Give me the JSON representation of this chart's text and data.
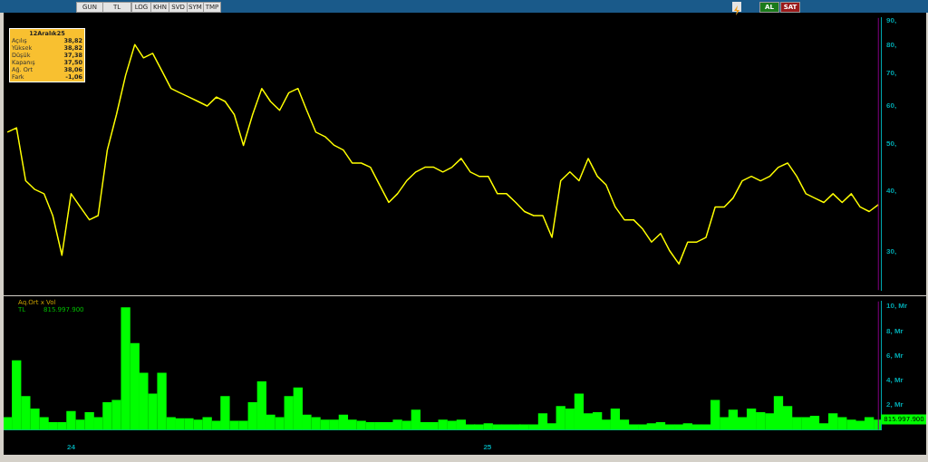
{
  "chart_data": [
    {
      "type": "line",
      "x": [
        2023.847,
        2023.869,
        2023.891,
        2023.913,
        2023.935,
        2023.956,
        2023.978,
        2024.0,
        2024.022,
        2024.044,
        2024.065,
        2024.087,
        2024.109,
        2024.131,
        2024.153,
        2024.174,
        2024.196,
        2024.218,
        2024.24,
        2024.261,
        2024.283,
        2024.305,
        2024.327,
        2024.349,
        2024.37,
        2024.392,
        2024.414,
        2024.436,
        2024.458,
        2024.479,
        2024.501,
        2024.523,
        2024.545,
        2024.566,
        2024.588,
        2024.61,
        2024.632,
        2024.654,
        2024.675,
        2024.697,
        2024.719,
        2024.741,
        2024.763,
        2024.784,
        2024.806,
        2024.828,
        2024.85,
        2024.871,
        2024.893,
        2024.915,
        2024.937,
        2024.959,
        2024.98,
        2025.002,
        2025.024,
        2025.046,
        2025.068,
        2025.089,
        2025.111,
        2025.133,
        2025.155,
        2025.176,
        2025.198,
        2025.22,
        2025.242,
        2025.264,
        2025.285,
        2025.307,
        2025.329,
        2025.351,
        2025.373,
        2025.394,
        2025.416,
        2025.438,
        2025.46,
        2025.481,
        2025.503,
        2025.525,
        2025.547,
        2025.569,
        2025.59,
        2025.612,
        2025.634,
        2025.656,
        2025.678,
        2025.699,
        2025.721,
        2025.743,
        2025.765,
        2025.786,
        2025.808,
        2025.83,
        2025.852,
        2025.874,
        2025.895,
        2025.917,
        2025.939
      ],
      "series": [
        {
          "color": "#ffff00",
          "values": [
            52.9,
            54.0,
            42.0,
            40.3,
            39.5,
            35.6,
            29.5,
            39.5,
            37.1,
            34.9,
            35.6,
            48.6,
            57.5,
            69.3,
            80.2,
            75.3,
            76.9,
            70.8,
            65.1,
            63.8,
            62.5,
            61.2,
            59.9,
            62.5,
            61.2,
            57.5,
            49.7,
            57.5,
            65.1,
            61.2,
            58.7,
            63.8,
            65.1,
            58.7,
            52.9,
            51.8,
            49.7,
            48.6,
            45.7,
            45.7,
            44.8,
            41.2,
            37.9,
            39.5,
            42.0,
            43.8,
            44.8,
            44.8,
            43.8,
            44.8,
            46.7,
            43.8,
            42.9,
            42.9,
            39.5,
            39.5,
            37.9,
            36.3,
            35.6,
            35.6,
            32.1,
            42.0,
            43.8,
            42.0,
            46.7,
            42.9,
            41.2,
            37.1,
            34.9,
            34.9,
            33.4,
            31.4,
            32.7,
            30.1,
            28.3,
            31.4,
            31.4,
            32.1,
            37.1,
            37.1,
            38.7,
            42.0,
            42.9,
            42.0,
            42.9,
            44.8,
            45.7,
            42.9,
            39.5,
            38.7,
            37.9,
            39.5,
            37.9,
            39.5,
            37.1,
            36.3,
            37.5
          ]
        }
      ],
      "xlim": [
        2023.838,
        2025.945
      ],
      "log": true,
      "ylim": [
        25,
        91
      ],
      "yticks": [
        {
          "value": 30,
          "label": "30,"
        },
        {
          "value": 40,
          "label": "40,"
        },
        {
          "value": 50,
          "label": "50,"
        },
        {
          "value": 60,
          "label": "60,"
        },
        {
          "value": 70,
          "label": "70,"
        },
        {
          "value": 80,
          "label": "80,"
        },
        {
          "value": 90,
          "label": "90,"
        }
      ],
      "tick_labels": "y",
      "ref_lines": [
        {
          "axis": "x",
          "value": 2025.939,
          "color": "#800080"
        }
      ],
      "annotations": [
        "12Aralık25",
        "Açılış",
        "38,82",
        "Yüksek",
        "38,82",
        "Düşük",
        "37,38",
        "Kapanış",
        "37,50",
        "Ağ. Ort",
        "38,06",
        "Fark",
        "-1,06",
        "GUN",
        "TL",
        "LOG",
        "KHN",
        "SVD",
        "SYM",
        "TMP",
        "AL",
        "SAT"
      ]
    },
    {
      "type": "bar",
      "x": [
        2023.847,
        2023.869,
        2023.891,
        2023.913,
        2023.935,
        2023.956,
        2023.978,
        2024.0,
        2024.022,
        2024.044,
        2024.065,
        2024.087,
        2024.109,
        2024.131,
        2024.153,
        2024.174,
        2024.196,
        2024.218,
        2024.24,
        2024.261,
        2024.283,
        2024.305,
        2024.327,
        2024.349,
        2024.37,
        2024.392,
        2024.414,
        2024.436,
        2024.458,
        2024.479,
        2024.501,
        2024.523,
        2024.545,
        2024.566,
        2024.588,
        2024.61,
        2024.632,
        2024.654,
        2024.675,
        2024.697,
        2024.719,
        2024.741,
        2024.763,
        2024.784,
        2024.806,
        2024.828,
        2024.85,
        2024.871,
        2024.893,
        2024.915,
        2024.937,
        2024.959,
        2024.98,
        2025.002,
        2025.024,
        2025.046,
        2025.068,
        2025.089,
        2025.111,
        2025.133,
        2025.155,
        2025.176,
        2025.198,
        2025.22,
        2025.242,
        2025.264,
        2025.285,
        2025.307,
        2025.329,
        2025.351,
        2025.373,
        2025.394,
        2025.416,
        2025.438,
        2025.46,
        2025.481,
        2025.503,
        2025.525,
        2025.547,
        2025.569,
        2025.59,
        2025.612,
        2025.634,
        2025.656,
        2025.678,
        2025.699,
        2025.721,
        2025.743,
        2025.765,
        2025.786,
        2025.808,
        2025.83,
        2025.852,
        2025.874,
        2025.895,
        2025.917,
        2025.939
      ],
      "series": [
        {
          "color": "#00ff00",
          "values": [
            1.0,
            5.6,
            2.7,
            1.7,
            1.0,
            0.6,
            0.6,
            1.5,
            0.8,
            1.4,
            1.0,
            2.2,
            2.4,
            9.9,
            7.0,
            4.6,
            2.9,
            4.6,
            1.0,
            0.9,
            0.9,
            0.8,
            1.0,
            0.7,
            2.7,
            0.7,
            0.7,
            2.2,
            3.9,
            1.2,
            1.0,
            2.7,
            3.4,
            1.2,
            1.0,
            0.8,
            0.8,
            1.2,
            0.8,
            0.7,
            0.6,
            0.6,
            0.6,
            0.8,
            0.7,
            1.6,
            0.6,
            0.6,
            0.8,
            0.7,
            0.8,
            0.4,
            0.4,
            0.5,
            0.4,
            0.4,
            0.4,
            0.4,
            0.4,
            1.3,
            0.5,
            1.9,
            1.7,
            2.9,
            1.3,
            1.4,
            0.8,
            1.7,
            0.8,
            0.4,
            0.4,
            0.5,
            0.6,
            0.4,
            0.4,
            0.5,
            0.4,
            0.4,
            2.4,
            1.0,
            1.6,
            1.0,
            1.7,
            1.4,
            1.3,
            2.7,
            1.9,
            1.0,
            1.0,
            1.1,
            0.5,
            1.3,
            1.0,
            0.8,
            0.7,
            1.0,
            0.8
          ]
        }
      ],
      "xlim": [
        2023.838,
        2025.945
      ],
      "xticks": [
        {
          "value": 2024,
          "label": "24"
        },
        {
          "value": 2025,
          "label": "25"
        }
      ],
      "ylim": [
        0,
        10.4
      ],
      "yticks": [
        {
          "value": 2,
          "label": "2, Mr"
        },
        {
          "value": 4,
          "label": "4, Mr"
        },
        {
          "value": 6,
          "label": "6, Mr"
        },
        {
          "value": 8,
          "label": "8, Mr"
        },
        {
          "value": 10,
          "label": "10, Mr"
        }
      ],
      "ref_lines": [
        {
          "axis": "x",
          "value": 2025.939,
          "color": "#800080"
        }
      ],
      "annotations": [
        "Aq.Ort x Vol",
        "TL",
        "815.997.900",
        {
          "text": "815.997.900",
          "x": 2025.939,
          "y": 0.8
        }
      ]
    }
  ]
}
